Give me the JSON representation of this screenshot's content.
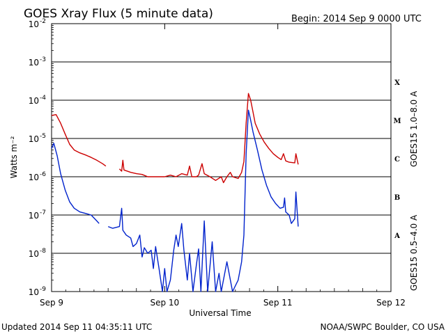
{
  "title": "GOES Xray Flux (5 minute data)",
  "begin": "Begin:  2014 Sep 9 0000 UTC",
  "footer_left": "Updated 2014 Sep 11 04:35:11 UTC",
  "footer_right": "NOAA/SWPC Boulder, CO USA",
  "colors": {
    "long": "#cc0000",
    "short": "#0022cc",
    "grid": "#000000"
  },
  "chart_data": {
    "type": "line",
    "title": "GOES Xray Flux (5 minute data)",
    "xlabel": "Universal Time",
    "ylabel": "Watts m⁻²",
    "x_range_days": [
      0,
      3
    ],
    "yscale": "log",
    "ylim": [
      1e-09,
      0.01
    ],
    "x_ticks": [
      {
        "label": "Sep 9",
        "day": 0
      },
      {
        "label": "Sep 10",
        "day": 1
      },
      {
        "label": "Sep 11",
        "day": 2
      },
      {
        "label": "Sep 12",
        "day": 3
      }
    ],
    "y_ticks": [
      {
        "label": "10",
        "exp": "-9",
        "value": 1e-09
      },
      {
        "label": "10",
        "exp": "-8",
        "value": 1e-08
      },
      {
        "label": "10",
        "exp": "-7",
        "value": 1e-07
      },
      {
        "label": "10",
        "exp": "-6",
        "value": 1e-06
      },
      {
        "label": "10",
        "exp": "-5",
        "value": 1e-05
      },
      {
        "label": "10",
        "exp": "-4",
        "value": 0.0001
      },
      {
        "label": "10",
        "exp": "-3",
        "value": 0.001
      },
      {
        "label": "10",
        "exp": "-2",
        "value": 0.01
      }
    ],
    "flare_classes": [
      {
        "label": "A",
        "value": 3e-08
      },
      {
        "label": "B",
        "value": 3e-07
      },
      {
        "label": "C",
        "value": 3e-06
      },
      {
        "label": "M",
        "value": 3e-05
      },
      {
        "label": "X",
        "value": 0.0003
      }
    ],
    "grid": "horizontal at each decade",
    "series": [
      {
        "name": "GOES15 1.0–8.0 A",
        "color": "#cc0000",
        "points": [
          [
            0.0,
            4e-05
          ],
          [
            0.04,
            4.2e-05
          ],
          [
            0.08,
            2.5e-05
          ],
          [
            0.12,
            1.3e-05
          ],
          [
            0.16,
            7e-06
          ],
          [
            0.2,
            5e-06
          ],
          [
            0.25,
            4.2e-06
          ],
          [
            0.3,
            3.7e-06
          ],
          [
            0.35,
            3.2e-06
          ],
          [
            0.4,
            2.7e-06
          ],
          [
            0.45,
            2.2e-06
          ],
          [
            0.48,
            1.9e-06
          ],
          [
            0.6,
            1.6e-06
          ],
          [
            0.62,
            1.4e-06
          ],
          [
            0.63,
            2.7e-06
          ],
          [
            0.64,
            1.5e-06
          ],
          [
            0.7,
            1.3e-06
          ],
          [
            0.75,
            1.2e-06
          ],
          [
            0.8,
            1.15e-06
          ],
          [
            0.85,
            1e-06
          ],
          [
            0.9,
            1e-06
          ],
          [
            0.95,
            1e-06
          ],
          [
            1.0,
            1e-06
          ],
          [
            1.05,
            1.1e-06
          ],
          [
            1.1,
            1e-06
          ],
          [
            1.15,
            1.2e-06
          ],
          [
            1.2,
            1.1e-06
          ],
          [
            1.22,
            1.9e-06
          ],
          [
            1.24,
            1e-06
          ],
          [
            1.28,
            1e-06
          ],
          [
            1.3,
            1.1e-06
          ],
          [
            1.33,
            2.2e-06
          ],
          [
            1.35,
            1.2e-06
          ],
          [
            1.4,
            1e-06
          ],
          [
            1.45,
            8e-07
          ],
          [
            1.5,
            1e-06
          ],
          [
            1.52,
            7e-07
          ],
          [
            1.55,
            1e-06
          ],
          [
            1.58,
            1.3e-06
          ],
          [
            1.6,
            1e-06
          ],
          [
            1.65,
            9e-07
          ],
          [
            1.68,
            1.3e-06
          ],
          [
            1.7,
            2.5e-06
          ],
          [
            1.72,
            2.5e-05
          ],
          [
            1.74,
            0.00015
          ],
          [
            1.76,
            0.0001
          ],
          [
            1.78,
            5e-05
          ],
          [
            1.8,
            2.5e-05
          ],
          [
            1.84,
            1.3e-05
          ],
          [
            1.88,
            8e-06
          ],
          [
            1.92,
            5.5e-06
          ],
          [
            1.96,
            4e-06
          ],
          [
            2.0,
            3.2e-06
          ],
          [
            2.03,
            2.8e-06
          ],
          [
            2.05,
            4e-06
          ],
          [
            2.07,
            2.6e-06
          ],
          [
            2.1,
            2.4e-06
          ],
          [
            2.15,
            2.3e-06
          ],
          [
            2.16,
            4e-06
          ],
          [
            2.18,
            2.1e-06
          ]
        ]
      },
      {
        "name": "GOES15 0.5–4.0 A",
        "color": "#0022cc",
        "points": [
          [
            0.0,
            5.5e-06
          ],
          [
            0.02,
            7.5e-06
          ],
          [
            0.05,
            3.5e-06
          ],
          [
            0.08,
            1.2e-06
          ],
          [
            0.12,
            4.5e-07
          ],
          [
            0.16,
            2.2e-07
          ],
          [
            0.2,
            1.5e-07
          ],
          [
            0.25,
            1.2e-07
          ],
          [
            0.3,
            1.1e-07
          ],
          [
            0.35,
            1e-07
          ],
          [
            0.4,
            7e-08
          ],
          [
            0.42,
            6e-08
          ],
          [
            0.5,
            5e-08
          ],
          [
            0.54,
            4.5e-08
          ],
          [
            0.6,
            5e-08
          ],
          [
            0.62,
            1.5e-07
          ],
          [
            0.63,
            4e-08
          ],
          [
            0.66,
            3e-08
          ],
          [
            0.7,
            2.5e-08
          ],
          [
            0.72,
            1.5e-08
          ],
          [
            0.75,
            1.8e-08
          ],
          [
            0.78,
            3e-08
          ],
          [
            0.8,
            8e-09
          ],
          [
            0.82,
            1.4e-08
          ],
          [
            0.85,
            1e-08
          ],
          [
            0.88,
            1.2e-08
          ],
          [
            0.9,
            4e-09
          ],
          [
            0.92,
            1.5e-08
          ],
          [
            0.95,
            4e-09
          ],
          [
            0.98,
            1e-09
          ],
          [
            1.0,
            4e-09
          ],
          [
            1.02,
            1e-09
          ],
          [
            1.05,
            2e-09
          ],
          [
            1.08,
            1.2e-08
          ],
          [
            1.1,
            3e-08
          ],
          [
            1.12,
            1.5e-08
          ],
          [
            1.15,
            6e-08
          ],
          [
            1.17,
            1.2e-08
          ],
          [
            1.2,
            2e-09
          ],
          [
            1.22,
            1e-08
          ],
          [
            1.25,
            1e-09
          ],
          [
            1.28,
            5e-09
          ],
          [
            1.3,
            1.3e-08
          ],
          [
            1.32,
            1e-09
          ],
          [
            1.35,
            7e-08
          ],
          [
            1.38,
            1e-09
          ],
          [
            1.42,
            2e-08
          ],
          [
            1.45,
            1e-09
          ],
          [
            1.48,
            3e-09
          ],
          [
            1.5,
            1e-09
          ],
          [
            1.55,
            6e-09
          ],
          [
            1.6,
            1e-09
          ],
          [
            1.65,
            2e-09
          ],
          [
            1.68,
            6e-09
          ],
          [
            1.7,
            3e-08
          ],
          [
            1.72,
            4e-06
          ],
          [
            1.74,
            5.5e-05
          ],
          [
            1.76,
            3e-05
          ],
          [
            1.78,
            1.5e-05
          ],
          [
            1.82,
            5e-06
          ],
          [
            1.86,
            1.5e-06
          ],
          [
            1.9,
            6e-07
          ],
          [
            1.94,
            3e-07
          ],
          [
            1.98,
            2e-07
          ],
          [
            2.02,
            1.5e-07
          ],
          [
            2.05,
            1.6e-07
          ],
          [
            2.06,
            2.8e-07
          ],
          [
            2.07,
            1.2e-07
          ],
          [
            2.1,
            1e-07
          ],
          [
            2.12,
            6e-08
          ],
          [
            2.15,
            8e-08
          ],
          [
            2.16,
            4e-07
          ],
          [
            2.18,
            5e-08
          ]
        ]
      }
    ],
    "gaps": [
      [
        0.48,
        0.6
      ],
      [
        0.42,
        0.5
      ]
    ]
  }
}
